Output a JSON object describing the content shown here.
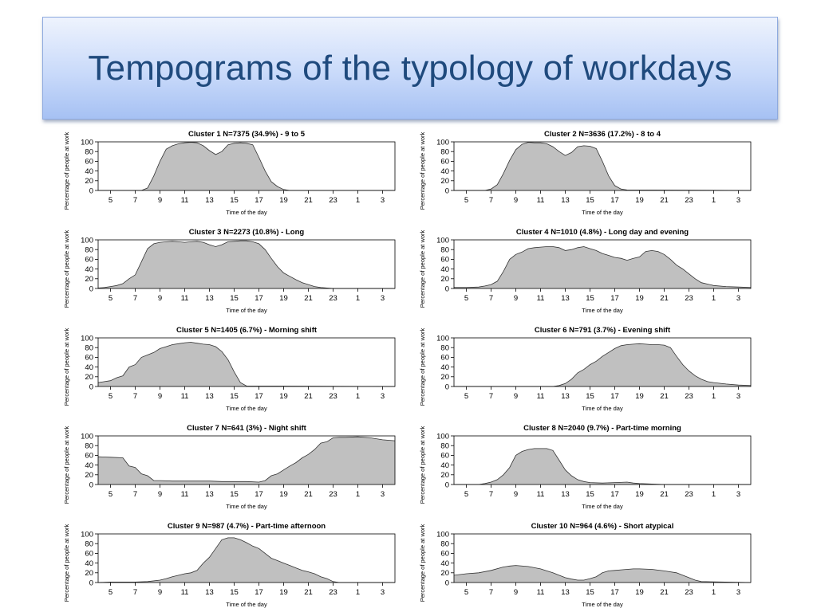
{
  "slide": {
    "title": "Tempograms of the typology of workdays"
  },
  "chart_data": [
    {
      "type": "area",
      "title": "Cluster 1 N=7375 (34.9%) - 9 to 5",
      "xlabel": "Time of the day",
      "ylabel": "Percentage of people at work",
      "xticks": [
        "5",
        "7",
        "9",
        "11",
        "13",
        "15",
        "17",
        "19",
        "21",
        "23",
        "1",
        "3"
      ],
      "yticks": [
        0,
        20,
        40,
        60,
        80,
        100
      ],
      "ylim": [
        0,
        100
      ],
      "x": [
        4,
        7.5,
        8,
        8.5,
        9,
        9.5,
        10,
        10.5,
        11,
        11.5,
        12,
        12.5,
        13,
        13.5,
        14,
        14.5,
        15,
        15.5,
        16,
        16.5,
        17,
        17.5,
        18,
        18.5,
        19,
        19.5,
        28
      ],
      "values": [
        0,
        0,
        5,
        30,
        60,
        85,
        92,
        96,
        98,
        99,
        98,
        92,
        82,
        74,
        80,
        94,
        97,
        98,
        97,
        94,
        68,
        40,
        18,
        8,
        2,
        0,
        0
      ]
    },
    {
      "type": "area",
      "title": "Cluster 2 N=3636 (17.2%) - 8 to 4",
      "xlabel": "Time of the day",
      "ylabel": "Percentage of people at work",
      "xticks": [
        "5",
        "7",
        "9",
        "11",
        "13",
        "15",
        "17",
        "19",
        "21",
        "23",
        "1",
        "3"
      ],
      "yticks": [
        0,
        20,
        40,
        60,
        80,
        100
      ],
      "ylim": [
        0,
        100
      ],
      "x": [
        4,
        6.5,
        7,
        7.5,
        8,
        8.5,
        9,
        9.5,
        10,
        10.5,
        11,
        11.5,
        12,
        12.5,
        13,
        13.5,
        14,
        14.5,
        15,
        15.5,
        16,
        16.5,
        17,
        17.5,
        18,
        28
      ],
      "values": [
        0,
        0,
        3,
        12,
        35,
        62,
        84,
        95,
        99,
        98,
        98,
        96,
        90,
        80,
        72,
        78,
        90,
        92,
        91,
        86,
        60,
        30,
        10,
        3,
        1,
        0
      ]
    },
    {
      "type": "area",
      "title": "Cluster 3 N=2273 (10.8%) - Long",
      "xlabel": "Time of the day",
      "ylabel": "Percentage of people at work",
      "xticks": [
        "5",
        "7",
        "9",
        "11",
        "13",
        "15",
        "17",
        "19",
        "21",
        "23",
        "1",
        "3"
      ],
      "yticks": [
        0,
        20,
        40,
        60,
        80,
        100
      ],
      "ylim": [
        0,
        100
      ],
      "x": [
        4,
        4.5,
        5,
        5.5,
        6,
        6.5,
        7,
        7.5,
        8,
        8.5,
        9,
        9.5,
        10,
        10.5,
        11,
        11.5,
        12,
        12.5,
        13,
        13.5,
        14,
        14.5,
        15,
        15.5,
        16,
        16.5,
        17,
        17.5,
        18,
        18.5,
        19,
        19.5,
        20,
        20.5,
        21,
        21.5,
        22,
        22.5,
        23,
        28
      ],
      "values": [
        1,
        2,
        4,
        6,
        10,
        20,
        28,
        55,
        82,
        92,
        95,
        96,
        97,
        96,
        95,
        96,
        97,
        95,
        90,
        86,
        90,
        96,
        97,
        98,
        98,
        96,
        92,
        80,
        62,
        45,
        32,
        25,
        18,
        12,
        8,
        4,
        2,
        1,
        0,
        0
      ]
    },
    {
      "type": "area",
      "title": "Cluster 4 N=1010 (4.8%) - Long day and evening",
      "xlabel": "Time of the day",
      "ylabel": "Percentage of people at work",
      "xticks": [
        "5",
        "7",
        "9",
        "11",
        "13",
        "15",
        "17",
        "19",
        "21",
        "23",
        "1",
        "3"
      ],
      "yticks": [
        0,
        20,
        40,
        60,
        80,
        100
      ],
      "ylim": [
        0,
        100
      ],
      "x": [
        4,
        5,
        6,
        6.5,
        7,
        7.5,
        8,
        8.5,
        9,
        9.5,
        10,
        10.5,
        11,
        11.5,
        12,
        12.5,
        13,
        13.5,
        14,
        14.5,
        15,
        15.5,
        16,
        16.5,
        17,
        17.5,
        18,
        18.5,
        19,
        19.5,
        20,
        20.5,
        21,
        21.5,
        22,
        22.5,
        23,
        23.5,
        24,
        25,
        26,
        27,
        28
      ],
      "values": [
        2,
        2,
        3,
        5,
        8,
        15,
        35,
        60,
        70,
        75,
        82,
        84,
        85,
        86,
        86,
        84,
        78,
        80,
        84,
        86,
        82,
        78,
        72,
        68,
        64,
        62,
        58,
        62,
        65,
        76,
        78,
        76,
        70,
        60,
        48,
        40,
        30,
        20,
        12,
        6,
        4,
        3,
        2
      ]
    },
    {
      "type": "area",
      "title": "Cluster 5 N=1405 (6.7%) - Morning shift",
      "xlabel": "Time of the day",
      "ylabel": "Percentage of people at work",
      "xticks": [
        "5",
        "7",
        "9",
        "11",
        "13",
        "15",
        "17",
        "19",
        "21",
        "23",
        "1",
        "3"
      ],
      "yticks": [
        0,
        20,
        40,
        60,
        80,
        100
      ],
      "ylim": [
        0,
        100
      ],
      "x": [
        4,
        5,
        5.5,
        6,
        6.5,
        7,
        7.5,
        8,
        8.5,
        9,
        9.5,
        10,
        10.5,
        11,
        11.5,
        12,
        12.5,
        13,
        13.5,
        14,
        14.5,
        15,
        15.5,
        16,
        28
      ],
      "values": [
        8,
        12,
        18,
        22,
        40,
        45,
        60,
        65,
        70,
        78,
        82,
        86,
        88,
        90,
        91,
        89,
        87,
        86,
        82,
        72,
        55,
        30,
        8,
        1,
        0
      ]
    },
    {
      "type": "area",
      "title": "Cluster 6 N=791 (3.7%) - Evening shift",
      "xlabel": "Time of the day",
      "ylabel": "Percentage of people at work",
      "xticks": [
        "5",
        "7",
        "9",
        "11",
        "13",
        "15",
        "17",
        "19",
        "21",
        "23",
        "1",
        "3"
      ],
      "yticks": [
        0,
        20,
        40,
        60,
        80,
        100
      ],
      "ylim": [
        0,
        100
      ],
      "x": [
        4,
        12,
        12.5,
        13,
        13.5,
        14,
        14.5,
        15,
        15.5,
        16,
        16.5,
        17,
        17.5,
        18,
        18.5,
        19,
        19.5,
        20,
        20.5,
        21,
        21.5,
        22,
        22.5,
        23,
        23.5,
        24,
        24.5,
        25,
        26,
        27,
        28
      ],
      "values": [
        0,
        0,
        2,
        6,
        15,
        28,
        35,
        45,
        52,
        62,
        70,
        78,
        84,
        86,
        87,
        88,
        87,
        86,
        86,
        85,
        80,
        62,
        45,
        32,
        22,
        15,
        10,
        8,
        5,
        3,
        2
      ]
    },
    {
      "type": "area",
      "title": "Cluster 7 N=641 (3%) - Night shift",
      "xlabel": "Time of the day",
      "ylabel": "Percentage of people at work",
      "xticks": [
        "5",
        "7",
        "9",
        "11",
        "13",
        "15",
        "17",
        "19",
        "21",
        "23",
        "1",
        "3"
      ],
      "yticks": [
        0,
        20,
        40,
        60,
        80,
        100
      ],
      "ylim": [
        0,
        100
      ],
      "x": [
        4,
        5,
        6,
        6.5,
        7,
        7.5,
        8,
        8.5,
        9,
        10,
        11,
        12,
        13,
        14,
        15,
        16,
        17,
        17.5,
        18,
        18.5,
        19,
        19.5,
        20,
        20.5,
        21,
        21.5,
        22,
        22.5,
        23,
        23.5,
        24,
        25,
        26,
        27,
        28
      ],
      "values": [
        57,
        56,
        55,
        38,
        35,
        22,
        18,
        8,
        8,
        7,
        7,
        7,
        7,
        6,
        6,
        6,
        5,
        8,
        18,
        22,
        30,
        38,
        45,
        55,
        62,
        72,
        85,
        88,
        96,
        97,
        97,
        98,
        96,
        92,
        90
      ]
    },
    {
      "type": "area",
      "title": "Cluster 8 N=2040 (9.7%) - Part-time morning",
      "xlabel": "Time of the day",
      "ylabel": "Percentage of people at work",
      "xticks": [
        "5",
        "7",
        "9",
        "11",
        "13",
        "15",
        "17",
        "19",
        "21",
        "23",
        "1",
        "3"
      ],
      "yticks": [
        0,
        20,
        40,
        60,
        80,
        100
      ],
      "ylim": [
        0,
        100
      ],
      "x": [
        4,
        6,
        6.5,
        7,
        7.5,
        8,
        8.5,
        9,
        9.5,
        10,
        10.5,
        11,
        11.5,
        12,
        12.5,
        13,
        13.5,
        14,
        14.5,
        15,
        16,
        17,
        18,
        18.5,
        19,
        20,
        21,
        28
      ],
      "values": [
        0,
        0,
        2,
        5,
        10,
        20,
        35,
        60,
        68,
        72,
        74,
        74,
        74,
        70,
        50,
        30,
        18,
        10,
        6,
        4,
        3,
        4,
        5,
        3,
        2,
        1,
        0,
        0
      ]
    },
    {
      "type": "area",
      "title": "Cluster 9 N=987 (4.7%) - Part-time afternoon",
      "xlabel": "Time of the day",
      "ylabel": "Percentage of people at work",
      "xticks": [
        "5",
        "7",
        "9",
        "11",
        "13",
        "15",
        "17",
        "19",
        "21",
        "23",
        "1",
        "3"
      ],
      "yticks": [
        0,
        20,
        40,
        60,
        80,
        100
      ],
      "ylim": [
        0,
        100
      ],
      "x": [
        4,
        5,
        7,
        8,
        9,
        9.5,
        10,
        10.5,
        11,
        11.5,
        12,
        12.5,
        13,
        13.5,
        14,
        14.5,
        15,
        15.5,
        16,
        16.5,
        17,
        17.5,
        18,
        18.5,
        19,
        19.5,
        20,
        20.5,
        21,
        21.5,
        22,
        22.5,
        23,
        23.5,
        28
      ],
      "values": [
        0,
        1,
        1,
        2,
        5,
        8,
        12,
        15,
        18,
        20,
        25,
        40,
        52,
        70,
        88,
        92,
        92,
        88,
        82,
        75,
        70,
        60,
        50,
        45,
        40,
        35,
        30,
        25,
        22,
        18,
        12,
        8,
        2,
        0,
        0
      ]
    },
    {
      "type": "area",
      "title": "Cluster 10 N=964 (4.6%) - Short atypical",
      "xlabel": "Time of the day",
      "ylabel": "Percentage of people at work",
      "xticks": [
        "5",
        "7",
        "9",
        "11",
        "13",
        "15",
        "17",
        "19",
        "21",
        "23",
        "1",
        "3"
      ],
      "yticks": [
        0,
        20,
        40,
        60,
        80,
        100
      ],
      "ylim": [
        0,
        100
      ],
      "x": [
        4,
        5,
        6,
        7,
        8,
        8.5,
        9,
        10,
        11,
        11.5,
        12,
        12.5,
        13,
        13.5,
        14,
        14.5,
        15,
        15.5,
        16,
        16.5,
        17,
        17.5,
        18,
        18.5,
        19,
        20,
        21,
        22,
        22.5,
        23,
        23.5,
        24,
        28
      ],
      "values": [
        15,
        18,
        20,
        25,
        32,
        34,
        35,
        33,
        28,
        24,
        20,
        15,
        10,
        7,
        5,
        5,
        8,
        12,
        20,
        24,
        25,
        26,
        27,
        28,
        28,
        27,
        24,
        20,
        15,
        10,
        5,
        2,
        0
      ]
    }
  ]
}
